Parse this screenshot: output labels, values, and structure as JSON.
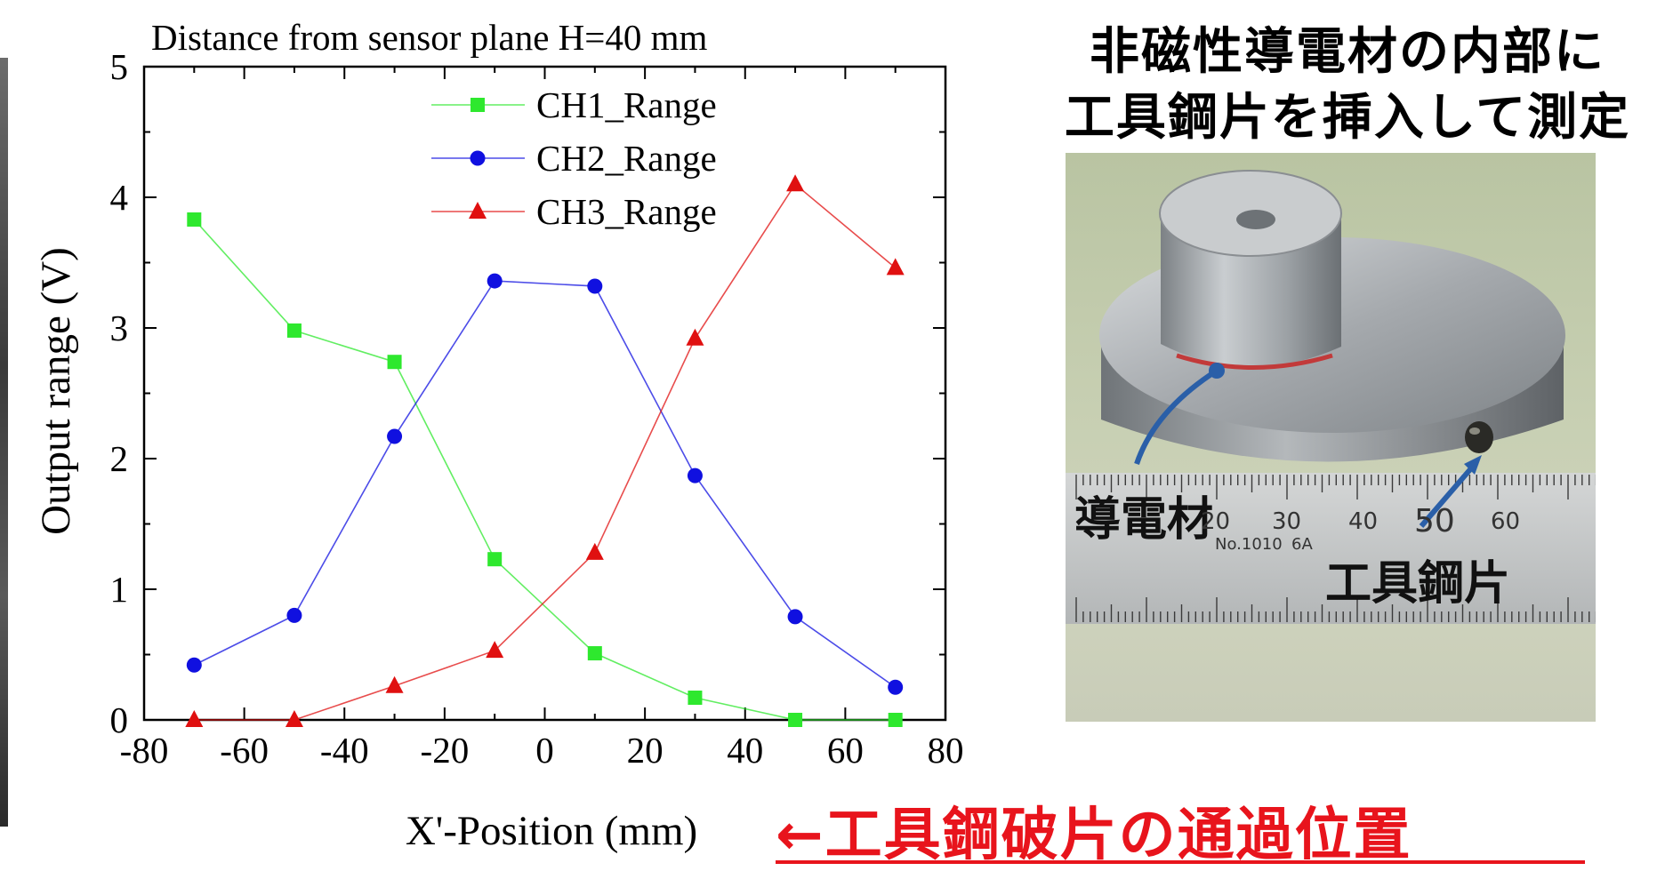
{
  "chart_data": {
    "type": "line",
    "title": "Distance from sensor plane H=40 mm",
    "xlabel": "X'-Position (mm)",
    "ylabel": "Output range (V)",
    "xlim": [
      -80,
      80
    ],
    "ylim": [
      0,
      5
    ],
    "xticks": [
      -80,
      -60,
      -40,
      -20,
      0,
      20,
      40,
      60,
      80
    ],
    "yticks": [
      0,
      1,
      2,
      3,
      4,
      5
    ],
    "legend_position": "top-center",
    "x": [
      -70,
      -50,
      -30,
      -10,
      10,
      30,
      50,
      70
    ],
    "series": [
      {
        "name": "CH1_Range",
        "marker": "square",
        "color": "#2ee82e",
        "values": [
          3.83,
          2.98,
          2.74,
          1.23,
          0.51,
          0.17,
          0.0,
          0.0
        ]
      },
      {
        "name": "CH2_Range",
        "marker": "circle",
        "color": "#1010e0",
        "values": [
          0.42,
          0.8,
          2.17,
          3.36,
          3.32,
          1.87,
          0.79,
          0.25
        ]
      },
      {
        "name": "CH3_Range",
        "marker": "triangle",
        "color": "#e01010",
        "values": [
          0.0,
          0.0,
          0.26,
          0.53,
          1.28,
          2.92,
          4.1,
          3.46
        ]
      }
    ]
  },
  "photo_panel": {
    "title_line1": "非磁性導電材の内部に",
    "title_line2": "工具鋼片を挿入して測定",
    "label_conductor": "導電材",
    "label_tool_steel": "工具鋼片",
    "ruler_numbers": [
      "20",
      "30",
      "40",
      "50",
      "60"
    ],
    "ruler_brand": "No.1010",
    "ruler_code": "6A",
    "line_color": "#2a5fa8"
  },
  "passage_note": "←工具鋼破片の通過位置"
}
